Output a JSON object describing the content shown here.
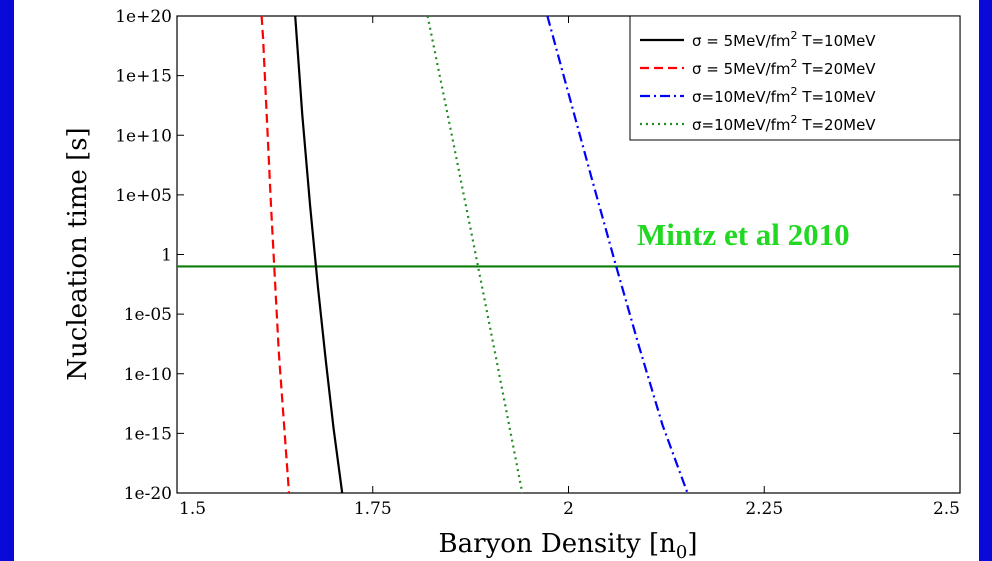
{
  "slide": {
    "background": "#0a0ad8",
    "panel_color": "#ffffff"
  },
  "chart_data": {
    "type": "line",
    "xlabel": "Baryon Density [n₀]",
    "ylabel": "Nucleation time [s]",
    "xlim": [
      1.5,
      2.5
    ],
    "ylim_exponent": [
      -20,
      20
    ],
    "y_scale": "log",
    "x_ticks": [
      1.5,
      1.75,
      2,
      2.25,
      2.5
    ],
    "x_tick_labels": [
      "1.5",
      "1.75",
      "2",
      "2.25",
      "2.5"
    ],
    "y_ticks_exponent": [
      -20,
      -15,
      -10,
      -5,
      0,
      5,
      10,
      15,
      20
    ],
    "y_tick_labels": [
      "1e-20",
      "1e-15",
      "1e-10",
      "1e-05",
      "1",
      "1e+05",
      "1e+10",
      "1e+15",
      "1e+20"
    ],
    "legend_position": "top-right",
    "series": [
      {
        "name": "σ = 5MeV/fm² T=10MeV",
        "legend_parts": [
          "σ = 5MeV/fm",
          "2",
          "  T=10MeV"
        ],
        "color": "#000000",
        "dash": "solid",
        "x": [
          1.651,
          1.66,
          1.67,
          1.68,
          1.69,
          1.7,
          1.711
        ],
        "y_exponent": [
          20,
          11.7,
          4.1,
          -2.7,
          -8.9,
          -14.6,
          -20
        ]
      },
      {
        "name": "σ = 5MeV/fm² T=20MeV",
        "legend_parts": [
          "σ = 5MeV/fm",
          "2",
          "  T=20MeV"
        ],
        "color": "#ff0000",
        "dash": "dashed",
        "x": [
          1.608,
          1.61,
          1.62,
          1.63,
          1.643
        ],
        "y_exponent": [
          20,
          18.1,
          4.1,
          -8.2,
          -20
        ]
      },
      {
        "name": "σ=10MeV/fm² T=10MeV",
        "legend_parts": [
          "σ=10MeV/fm",
          "2",
          "  T=10MeV"
        ],
        "color": "#0000ff",
        "dash": "dashdot",
        "x": [
          1.973,
          2.0,
          2.03,
          2.06,
          2.09,
          2.12,
          2.152
        ],
        "y_exponent": [
          20,
          13.5,
          6.3,
          -0.8,
          -7.7,
          -14.3,
          -20
        ]
      },
      {
        "name": "σ=10MeV/fm² T=20MeV",
        "legend_parts": [
          "σ=10MeV/fm",
          "2",
          "  T=20MeV"
        ],
        "color": "#228b22",
        "dash": "dotted",
        "x": [
          1.82,
          1.85,
          1.88,
          1.91,
          1.941
        ],
        "y_exponent": [
          20,
          10.3,
          0.5,
          -9.5,
          -20
        ]
      }
    ],
    "hline": {
      "y_exponent": -1,
      "color": "#0a7d0a"
    },
    "annotation": {
      "text": "Mintz et al 2010",
      "color": "#22d822",
      "x": 2.035,
      "y_exponent": 1.5
    }
  }
}
